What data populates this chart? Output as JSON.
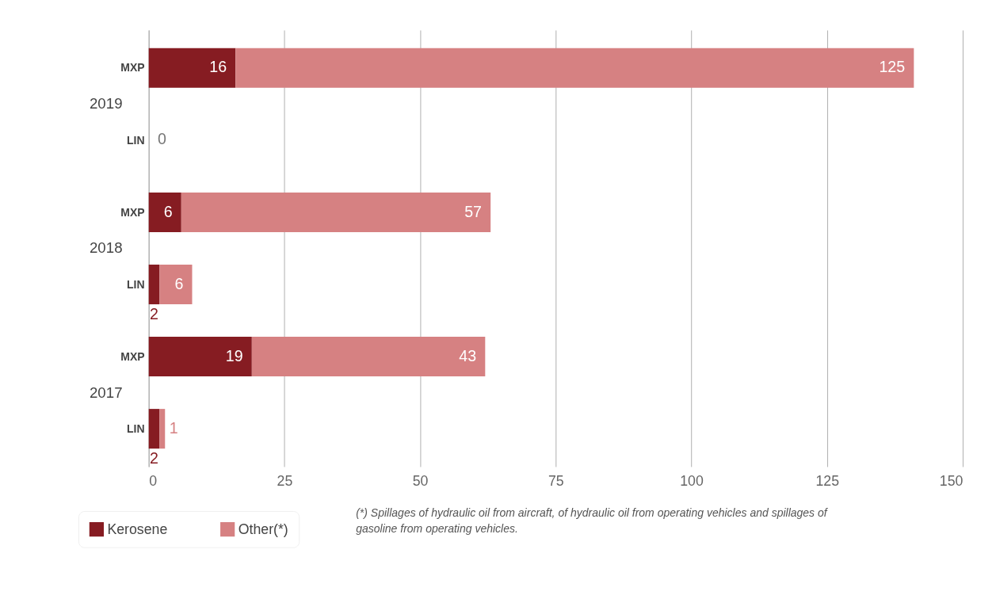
{
  "chart_data": {
    "type": "bar",
    "orientation": "horizontal",
    "stacked": true,
    "categories": [
      "MXP",
      "LIN",
      "MXP",
      "LIN",
      "MXP",
      "LIN"
    ],
    "series": [
      {
        "name": "Kerosene",
        "color": "#861c22",
        "values": [
          16,
          0,
          6,
          2,
          19,
          2
        ],
        "value_labels": [
          "16",
          "0",
          "6",
          "2",
          "19",
          "2"
        ]
      },
      {
        "name": "Other(*)",
        "color": "#d68182",
        "values": [
          125,
          0,
          57,
          6,
          43,
          1
        ],
        "value_labels": [
          "125",
          null,
          "57",
          "6",
          "43",
          "1"
        ]
      }
    ],
    "xlim": [
      0,
      150
    ],
    "xticks": [
      0,
      25,
      50,
      75,
      100,
      125,
      150
    ],
    "grid": "x",
    "legend": "bottom left",
    "annotations": [
      "2019",
      "2018",
      "2017",
      "(*) Spillages of hydraulic oil from aircraft, of hydraulic oil from operating vehicles and spillages of gasoline from operating vehicles."
    ]
  }
}
